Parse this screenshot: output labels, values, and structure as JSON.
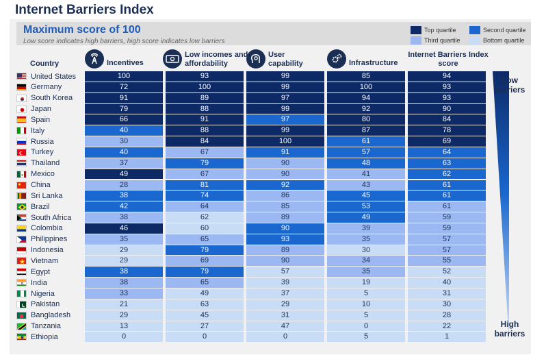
{
  "title": "Internet Barriers Index",
  "subtitle": "Maximum score of 100",
  "note": "Low score indicates high barriers, high score indicates low barriers",
  "legend": [
    {
      "label": "Top quartile",
      "color": "#0e2a66"
    },
    {
      "label": "Second quartile",
      "color": "#1967cf"
    },
    {
      "label": "Third quartile",
      "color": "#9cb8f2"
    },
    {
      "label": "Bottom quartile",
      "color": "#c9dcf5"
    }
  ],
  "side_labels": {
    "top": "Low barriers",
    "bottom": "High barriers"
  },
  "chart_data": {
    "type": "table",
    "title": "Internet Barriers Index",
    "row_header": "Country",
    "columns": [
      {
        "key": "incentives",
        "label": "Incentives",
        "icon": "signal-tower-icon"
      },
      {
        "key": "low_incomes",
        "label": "Low incomes and affordability",
        "icon": "money-icon"
      },
      {
        "key": "user_capability",
        "label": "User capability",
        "icon": "user-head-gear-icon"
      },
      {
        "key": "infrastructure",
        "label": "Infrastructure",
        "icon": "gears-icon"
      },
      {
        "key": "index",
        "label": "Internet Barriers Index score",
        "icon": ""
      }
    ],
    "rows": [
      {
        "country": "United States",
        "flag": "us",
        "values": [
          100,
          93,
          99,
          85,
          94
        ],
        "q": [
          1,
          1,
          1,
          1,
          1
        ]
      },
      {
        "country": "Germany",
        "flag": "de",
        "values": [
          72,
          100,
          99,
          100,
          93
        ],
        "q": [
          1,
          1,
          1,
          1,
          1
        ]
      },
      {
        "country": "South Korea",
        "flag": "kr",
        "values": [
          91,
          89,
          97,
          94,
          93
        ],
        "q": [
          1,
          1,
          1,
          1,
          1
        ]
      },
      {
        "country": "Japan",
        "flag": "jp",
        "values": [
          79,
          88,
          99,
          92,
          90
        ],
        "q": [
          1,
          1,
          1,
          1,
          1
        ]
      },
      {
        "country": "Spain",
        "flag": "es",
        "values": [
          66,
          91,
          97,
          80,
          84
        ],
        "q": [
          1,
          1,
          2,
          1,
          1
        ]
      },
      {
        "country": "Italy",
        "flag": "it",
        "values": [
          40,
          88,
          99,
          87,
          78
        ],
        "q": [
          2,
          1,
          1,
          1,
          1
        ]
      },
      {
        "country": "Russia",
        "flag": "ru",
        "values": [
          30,
          84,
          100,
          61,
          69
        ],
        "q": [
          3,
          1,
          1,
          2,
          1
        ]
      },
      {
        "country": "Turkey",
        "flag": "tr",
        "values": [
          40,
          67,
          91,
          57,
          64
        ],
        "q": [
          2,
          3,
          2,
          2,
          2
        ]
      },
      {
        "country": "Thailand",
        "flag": "th",
        "values": [
          37,
          79,
          90,
          48,
          63
        ],
        "q": [
          3,
          2,
          3,
          2,
          2
        ]
      },
      {
        "country": "Mexico",
        "flag": "mx",
        "values": [
          49,
          67,
          90,
          41,
          62
        ],
        "q": [
          1,
          3,
          3,
          3,
          2
        ]
      },
      {
        "country": "China",
        "flag": "cn",
        "values": [
          28,
          81,
          92,
          43,
          61
        ],
        "q": [
          3,
          2,
          2,
          3,
          2
        ]
      },
      {
        "country": "Sri Lanka",
        "flag": "lk",
        "values": [
          38,
          74,
          86,
          45,
          61
        ],
        "q": [
          2,
          2,
          3,
          2,
          2
        ]
      },
      {
        "country": "Brazil",
        "flag": "br",
        "values": [
          42,
          64,
          85,
          53,
          61
        ],
        "q": [
          2,
          3,
          3,
          2,
          3
        ]
      },
      {
        "country": "South Africa",
        "flag": "za",
        "values": [
          38,
          62,
          89,
          49,
          59
        ],
        "q": [
          3,
          4,
          3,
          2,
          3
        ]
      },
      {
        "country": "Colombia",
        "flag": "co",
        "values": [
          46,
          60,
          90,
          39,
          59
        ],
        "q": [
          1,
          4,
          2,
          3,
          3
        ]
      },
      {
        "country": "Philippines",
        "flag": "ph",
        "values": [
          35,
          65,
          93,
          35,
          57
        ],
        "q": [
          3,
          3,
          2,
          3,
          3
        ]
      },
      {
        "country": "Indonesia",
        "flag": "id",
        "values": [
          29,
          79,
          89,
          30,
          57
        ],
        "q": [
          4,
          2,
          3,
          4,
          3
        ]
      },
      {
        "country": "Vietnam",
        "flag": "vn",
        "values": [
          29,
          69,
          90,
          34,
          55
        ],
        "q": [
          4,
          3,
          3,
          3,
          3
        ]
      },
      {
        "country": "Egypt",
        "flag": "eg",
        "values": [
          38,
          79,
          57,
          35,
          52
        ],
        "q": [
          2,
          2,
          4,
          3,
          4
        ]
      },
      {
        "country": "India",
        "flag": "in",
        "values": [
          38,
          65,
          39,
          19,
          40
        ],
        "q": [
          3,
          3,
          4,
          4,
          4
        ]
      },
      {
        "country": "Nigeria",
        "flag": "ng",
        "values": [
          33,
          49,
          37,
          5,
          31
        ],
        "q": [
          3,
          4,
          4,
          4,
          4
        ]
      },
      {
        "country": "Pakistan",
        "flag": "pk",
        "values": [
          21,
          63,
          29,
          10,
          30
        ],
        "q": [
          4,
          4,
          4,
          4,
          4
        ]
      },
      {
        "country": "Bangladesh",
        "flag": "bd",
        "values": [
          29,
          45,
          31,
          5,
          28
        ],
        "q": [
          4,
          4,
          4,
          4,
          4
        ]
      },
      {
        "country": "Tanzania",
        "flag": "tz",
        "values": [
          13,
          27,
          47,
          0,
          22
        ],
        "q": [
          4,
          4,
          4,
          4,
          4
        ]
      },
      {
        "country": "Ethiopia",
        "flag": "et",
        "values": [
          0,
          0,
          0,
          5,
          1
        ],
        "q": [
          4,
          4,
          4,
          4,
          4
        ]
      }
    ]
  }
}
